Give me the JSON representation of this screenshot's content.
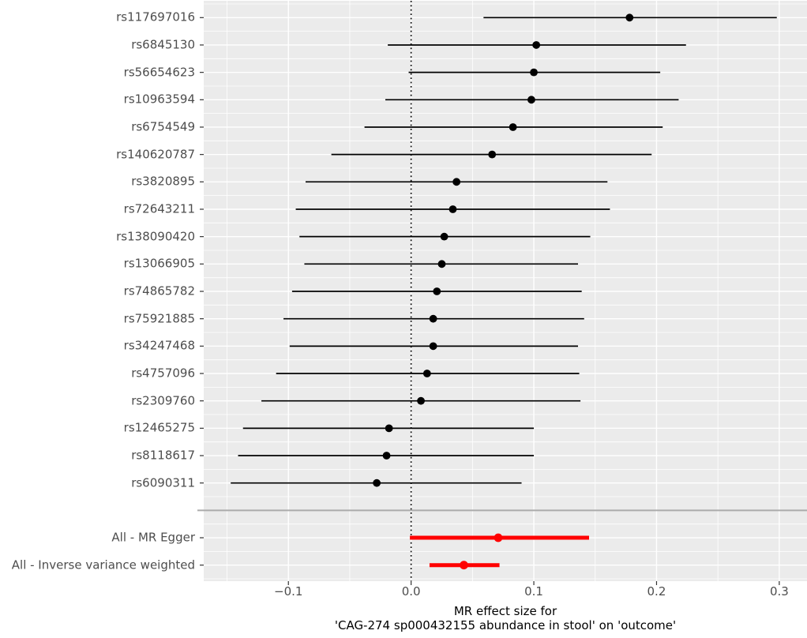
{
  "figure": {
    "background": "#FFFFFF",
    "panel_bg": "#EBEBEB",
    "grid_color": "#FFFFFF",
    "separator_color": "#ABABAB",
    "axis_text_color": "#4D4D4D",
    "axis_title_color": "#000000",
    "tick_color": "#333333",
    "zero_line_color": "#000000"
  },
  "chart_data": {
    "type": "scatter",
    "subtype": "forest-plot",
    "title": "",
    "xlabel_line1": "MR effect size for",
    "xlabel_line2": "'CAG-274 sp000432155 abundance in stool' on 'outcome'",
    "ylabel": "",
    "xlim": [
      -0.169,
      0.3226
    ],
    "zero_line": 0.0,
    "grid": "on",
    "legend": "none",
    "x_ticks": {
      "values": [
        -0.1,
        0.0,
        0.1,
        0.2,
        0.3
      ],
      "labels": [
        "−0.1",
        "0.0",
        "0.1",
        "0.2",
        "0.3"
      ]
    },
    "x_minor_ticks": [
      -0.15,
      -0.05,
      0.05,
      0.15,
      0.25
    ],
    "snp_color": "#000000",
    "all_color": "#FF0000",
    "rows": [
      {
        "label": "rs117697016",
        "b": 0.178,
        "lo": 0.059,
        "hi": 0.298,
        "group": "snp"
      },
      {
        "label": "rs6845130",
        "b": 0.102,
        "lo": -0.019,
        "hi": 0.224,
        "group": "snp"
      },
      {
        "label": "rs56654623",
        "b": 0.1,
        "lo": -0.002,
        "hi": 0.203,
        "group": "snp"
      },
      {
        "label": "rs10963594",
        "b": 0.098,
        "lo": -0.021,
        "hi": 0.218,
        "group": "snp"
      },
      {
        "label": "rs6754549",
        "b": 0.083,
        "lo": -0.038,
        "hi": 0.205,
        "group": "snp"
      },
      {
        "label": "rs140620787",
        "b": 0.066,
        "lo": -0.065,
        "hi": 0.196,
        "group": "snp"
      },
      {
        "label": "rs3820895",
        "b": 0.037,
        "lo": -0.086,
        "hi": 0.16,
        "group": "snp"
      },
      {
        "label": "rs72643211",
        "b": 0.034,
        "lo": -0.094,
        "hi": 0.162,
        "group": "snp"
      },
      {
        "label": "rs138090420",
        "b": 0.027,
        "lo": -0.091,
        "hi": 0.146,
        "group": "snp"
      },
      {
        "label": "rs13066905",
        "b": 0.025,
        "lo": -0.087,
        "hi": 0.136,
        "group": "snp"
      },
      {
        "label": "rs74865782",
        "b": 0.021,
        "lo": -0.097,
        "hi": 0.139,
        "group": "snp"
      },
      {
        "label": "rs75921885",
        "b": 0.018,
        "lo": -0.104,
        "hi": 0.141,
        "group": "snp"
      },
      {
        "label": "rs34247468",
        "b": 0.018,
        "lo": -0.099,
        "hi": 0.136,
        "group": "snp"
      },
      {
        "label": "rs4757096",
        "b": 0.013,
        "lo": -0.11,
        "hi": 0.137,
        "group": "snp"
      },
      {
        "label": "rs2309760",
        "b": 0.008,
        "lo": -0.122,
        "hi": 0.138,
        "group": "snp"
      },
      {
        "label": "rs12465275",
        "b": -0.018,
        "lo": -0.137,
        "hi": 0.1,
        "group": "snp"
      },
      {
        "label": "rs8118617",
        "b": -0.02,
        "lo": -0.141,
        "hi": 0.1,
        "group": "snp"
      },
      {
        "label": "rs6090311",
        "b": -0.028,
        "lo": -0.147,
        "hi": 0.09,
        "group": "snp"
      },
      {
        "label": "",
        "group": "separator"
      },
      {
        "label": "All - MR Egger",
        "b": 0.071,
        "lo": -0.001,
        "hi": 0.145,
        "group": "all"
      },
      {
        "label": "All - Inverse variance weighted",
        "b": 0.043,
        "lo": 0.015,
        "hi": 0.072,
        "group": "all"
      }
    ]
  }
}
